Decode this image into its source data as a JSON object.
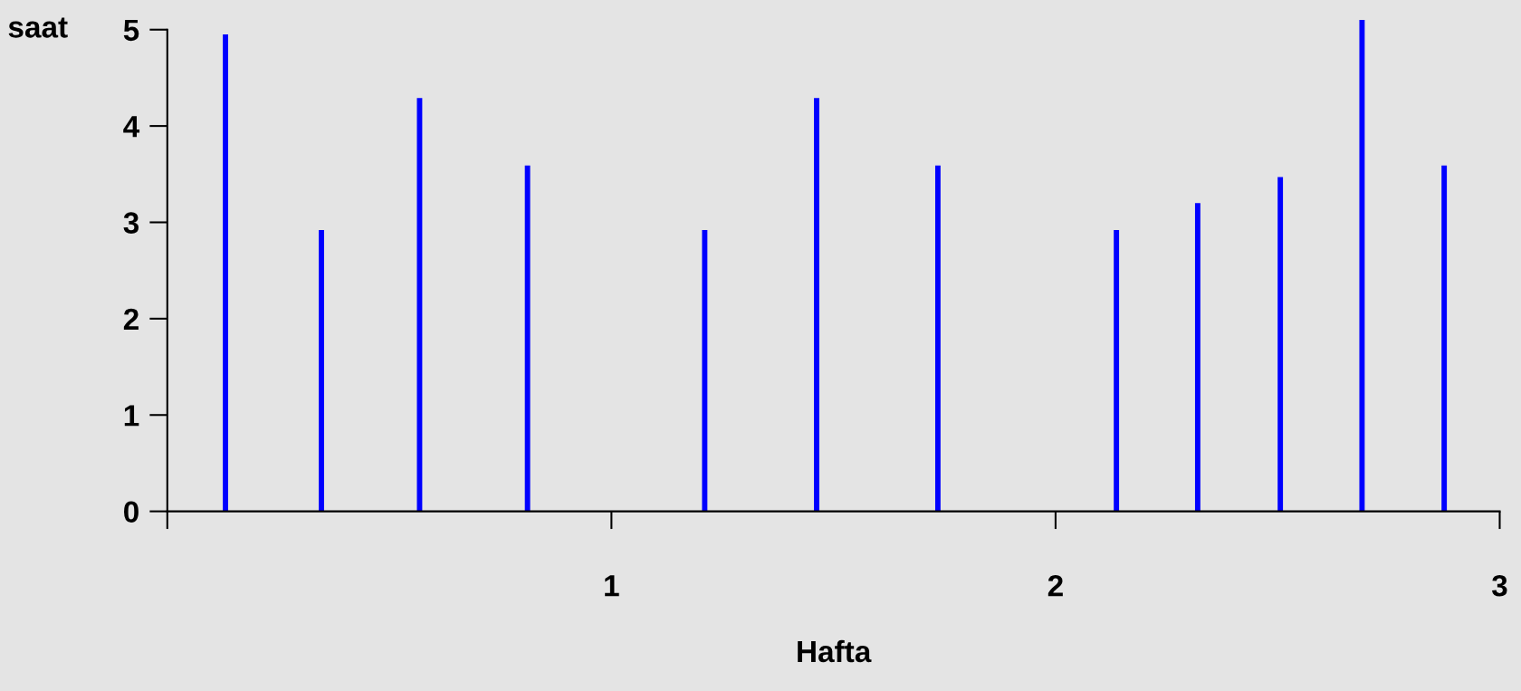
{
  "chart_data": {
    "type": "bar",
    "xlabel": "Hafta",
    "ylabel": "saat",
    "x": [
      0.131,
      0.347,
      0.568,
      0.811,
      1.21,
      1.462,
      1.735,
      2.137,
      2.32,
      2.506,
      2.69,
      2.875
    ],
    "values": [
      4.95,
      2.92,
      4.29,
      3.59,
      2.92,
      4.29,
      3.59,
      2.92,
      3.2,
      3.47,
      5.1,
      3.59
    ],
    "color": "#0000ff",
    "xlim": [
      0,
      3
    ],
    "xticks": [
      {
        "value": 0,
        "label": null
      },
      1,
      2,
      3
    ],
    "ylim": [
      0,
      5.15
    ],
    "yticks": [
      0,
      1,
      2,
      3,
      4,
      5
    ],
    "grid": false,
    "legend": false
  }
}
